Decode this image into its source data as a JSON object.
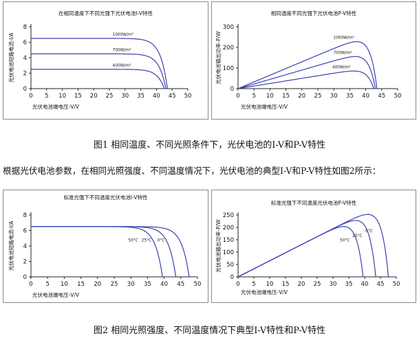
{
  "captions": {
    "fig1": "图1 相同温度、不同光照条件下，光伏电池的I-V和P-V特性",
    "paragraph": "根据光伏电池参数，在相同光照强度、不同温度情况下，光伏电池的典型I-V和P-V特性如图2所示：",
    "fig2": "图2 相同光照强度、不同温度情况下典型I-V特性和P-V特性"
  },
  "colors": {
    "curve": "#3b3fb0",
    "axis": "#222222",
    "border": "#8a8a8a"
  },
  "chart_data": [
    {
      "type": "line",
      "title": "在相同温度下不同光强下光伏电池I-V特性",
      "xlabel": "光伏电池端电压-V/V",
      "ylabel": "光伏电池短路电流-I/A",
      "xlim": [
        0,
        50
      ],
      "ylim": [
        0,
        8
      ],
      "xticks": [
        "0",
        "5",
        "10",
        "15",
        "20",
        "25",
        "30",
        "35",
        "40",
        "45",
        "50"
      ],
      "yticks": [
        "0",
        "2",
        "4",
        "6",
        "8"
      ],
      "curve_kind": "iv",
      "series": [
        {
          "name": "1000W/m²",
          "label": "1000W/m²",
          "isc": 6.5,
          "voc": 43.5
        },
        {
          "name": "700W/m²",
          "label": "700W/m²",
          "isc": 4.5,
          "voc": 43.0
        },
        {
          "name": "400W/m²",
          "label": "400W/m²",
          "isc": 2.5,
          "voc": 42.5
        }
      ]
    },
    {
      "type": "line",
      "title": "相同温度不同光强下光伏电池P-V特性",
      "xlabel": "光伏电池端电压-V/V",
      "ylabel": "光伏电池输出功率-P/W",
      "xlim": [
        0,
        50
      ],
      "ylim": [
        0,
        300
      ],
      "xticks": [
        "0",
        "5",
        "10",
        "15",
        "20",
        "25",
        "30",
        "35",
        "40",
        "45",
        "50"
      ],
      "yticks": [
        "0",
        "100",
        "200",
        "300"
      ],
      "curve_kind": "pv",
      "series": [
        {
          "name": "1000W/m²",
          "label": "1000W/m²",
          "isc": 6.5,
          "voc": 43.5
        },
        {
          "name": "700W/m²",
          "label": "700W/m²",
          "isc": 4.5,
          "voc": 43.0
        },
        {
          "name": "400W/m²",
          "label": "400W/m²",
          "isc": 2.5,
          "voc": 42.5
        }
      ]
    },
    {
      "type": "line",
      "title": "标准光强下不同温度光伏电池I-V特性",
      "xlabel": "光伏电池端电压-V/V",
      "ylabel": "光伏电池短路电流-I/A",
      "xlim": [
        0,
        50
      ],
      "ylim": [
        0,
        8
      ],
      "xticks": [
        "0",
        "5",
        "10",
        "15",
        "20",
        "25",
        "30",
        "35",
        "40",
        "45",
        "50"
      ],
      "yticks": [
        "0",
        "2",
        "4",
        "6",
        "8"
      ],
      "curve_kind": "iv",
      "series": [
        {
          "name": "50°C",
          "label": "50°C",
          "isc": 6.5,
          "voc": 39.5
        },
        {
          "name": "25°C",
          "label": "25°C",
          "isc": 6.5,
          "voc": 43.5
        },
        {
          "name": "0°C",
          "label": "0°C",
          "isc": 6.5,
          "voc": 47.5
        }
      ]
    },
    {
      "type": "line",
      "title": "标准光强下不同温度光伏电池P-V特性",
      "xlabel": "光伏电池端电压-V/V",
      "ylabel": "光伏电池输出功率-P/W",
      "xlim": [
        0,
        50
      ],
      "ylim": [
        0,
        250
      ],
      "xticks": [
        "0",
        "5",
        "10",
        "15",
        "20",
        "25",
        "30",
        "35",
        "40",
        "45",
        "50"
      ],
      "yticks": [
        "0",
        "50",
        "100",
        "150",
        "200",
        "250"
      ],
      "curve_kind": "pv",
      "series": [
        {
          "name": "50°C",
          "label": "50°C",
          "isc": 6.5,
          "voc": 39.5
        },
        {
          "name": "25°C",
          "label": "25°C",
          "isc": 6.5,
          "voc": 43.5
        },
        {
          "name": "0°C",
          "label": "0°C",
          "isc": 6.5,
          "voc": 47.5
        }
      ]
    }
  ]
}
